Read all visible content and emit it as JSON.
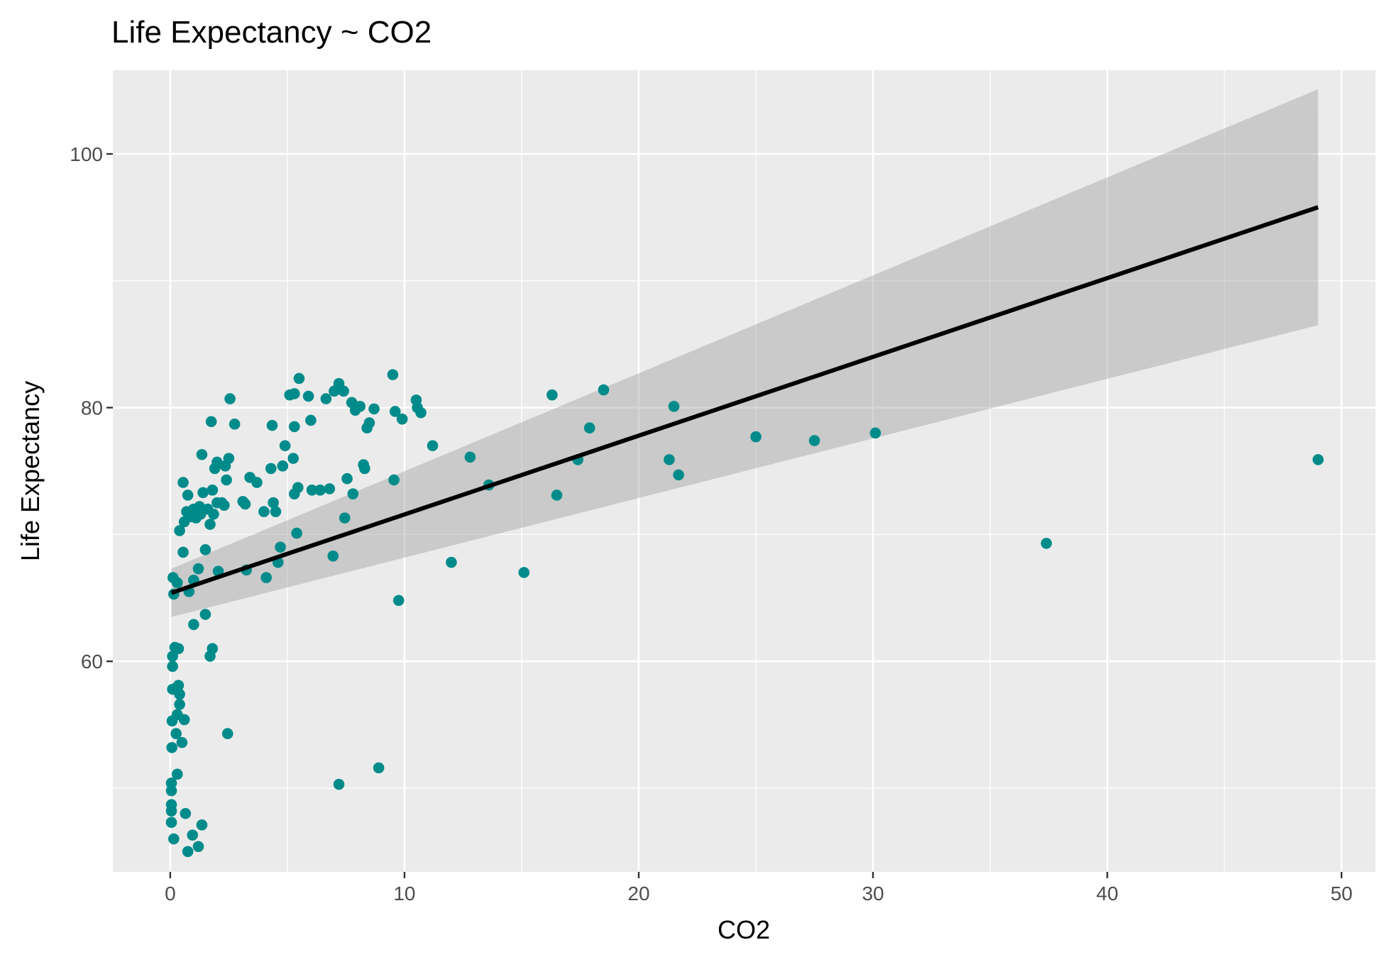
{
  "chart_data": {
    "type": "scatter",
    "title": "Life Expectancy ~ CO2",
    "xlabel": "CO2",
    "ylabel": "Life Expectancy",
    "xlim": [
      -2.45,
      51.45
    ],
    "ylim": [
      43.4,
      106.6
    ],
    "x_ticks": [
      0,
      10,
      20,
      30,
      40,
      50
    ],
    "x_tick_labels": [
      "0",
      "10",
      "20",
      "30",
      "40",
      "50"
    ],
    "y_ticks": [
      60,
      80,
      100
    ],
    "y_tick_labels": [
      "60",
      "80",
      "100"
    ],
    "grid": true,
    "panel_color": "#ebebeb",
    "grid_color": "#ffffff",
    "point_color": "#008b8b",
    "line_color": "#000000",
    "ribbon_color": "#999999",
    "series": [
      {
        "name": "observations",
        "points": [
          [
            0.05,
            47.3
          ],
          [
            0.05,
            48.2
          ],
          [
            0.05,
            48.7
          ],
          [
            0.05,
            49.8
          ],
          [
            0.05,
            50.4
          ],
          [
            0.07,
            53.2
          ],
          [
            0.08,
            55.3
          ],
          [
            0.1,
            57.8
          ],
          [
            0.1,
            59.6
          ],
          [
            0.1,
            60.4
          ],
          [
            0.12,
            66.6
          ],
          [
            0.15,
            46.0
          ],
          [
            0.15,
            65.3
          ],
          [
            0.2,
            61.1
          ],
          [
            0.25,
            54.3
          ],
          [
            0.3,
            51.1
          ],
          [
            0.3,
            55.8
          ],
          [
            0.3,
            66.2
          ],
          [
            0.35,
            58.1
          ],
          [
            0.35,
            61.0
          ],
          [
            0.4,
            57.4
          ],
          [
            0.4,
            56.6
          ],
          [
            0.4,
            70.3
          ],
          [
            0.5,
            53.6
          ],
          [
            0.55,
            68.6
          ],
          [
            0.55,
            74.1
          ],
          [
            0.6,
            55.4
          ],
          [
            0.6,
            71.0
          ],
          [
            0.65,
            48.0
          ],
          [
            0.7,
            71.8
          ],
          [
            0.75,
            45.0
          ],
          [
            0.75,
            73.1
          ],
          [
            0.8,
            65.5
          ],
          [
            0.9,
            71.4
          ],
          [
            0.95,
            46.3
          ],
          [
            1.0,
            66.4
          ],
          [
            1.0,
            62.9
          ],
          [
            1.0,
            72.0
          ],
          [
            1.1,
            71.3
          ],
          [
            1.2,
            45.4
          ],
          [
            1.2,
            67.3
          ],
          [
            1.25,
            72.2
          ],
          [
            1.3,
            71.6
          ],
          [
            1.35,
            47.1
          ],
          [
            1.35,
            76.3
          ],
          [
            1.4,
            73.3
          ],
          [
            1.5,
            68.8
          ],
          [
            1.5,
            63.7
          ],
          [
            1.6,
            72.0
          ],
          [
            1.7,
            70.8
          ],
          [
            1.7,
            60.4
          ],
          [
            1.75,
            78.9
          ],
          [
            1.8,
            61.0
          ],
          [
            1.8,
            73.5
          ],
          [
            1.85,
            71.6
          ],
          [
            1.9,
            75.2
          ],
          [
            2.0,
            72.5
          ],
          [
            2.0,
            75.7
          ],
          [
            2.05,
            67.1
          ],
          [
            2.2,
            72.5
          ],
          [
            2.3,
            72.3
          ],
          [
            2.35,
            75.4
          ],
          [
            2.4,
            74.3
          ],
          [
            2.45,
            54.3
          ],
          [
            2.5,
            76.0
          ],
          [
            2.55,
            80.7
          ],
          [
            2.75,
            78.7
          ],
          [
            3.1,
            72.6
          ],
          [
            3.2,
            72.4
          ],
          [
            3.25,
            67.2
          ],
          [
            3.4,
            74.5
          ],
          [
            3.7,
            74.1
          ],
          [
            4.0,
            71.8
          ],
          [
            4.1,
            66.6
          ],
          [
            4.3,
            75.2
          ],
          [
            4.35,
            78.6
          ],
          [
            4.4,
            72.5
          ],
          [
            4.5,
            71.8
          ],
          [
            4.6,
            67.8
          ],
          [
            4.7,
            69.0
          ],
          [
            4.8,
            75.4
          ],
          [
            4.9,
            77.0
          ],
          [
            5.1,
            81.0
          ],
          [
            5.25,
            76.0
          ],
          [
            5.3,
            81.1
          ],
          [
            5.3,
            78.5
          ],
          [
            5.3,
            73.2
          ],
          [
            5.4,
            70.1
          ],
          [
            5.45,
            73.7
          ],
          [
            5.5,
            82.3
          ],
          [
            5.9,
            80.9
          ],
          [
            6.0,
            79.0
          ],
          [
            6.05,
            73.5
          ],
          [
            6.4,
            73.5
          ],
          [
            6.65,
            80.7
          ],
          [
            6.8,
            73.6
          ],
          [
            6.95,
            68.3
          ],
          [
            7.0,
            81.3
          ],
          [
            7.2,
            81.9
          ],
          [
            7.2,
            50.3
          ],
          [
            7.4,
            81.3
          ],
          [
            7.45,
            71.3
          ],
          [
            7.55,
            74.4
          ],
          [
            7.75,
            80.4
          ],
          [
            7.8,
            73.2
          ],
          [
            7.9,
            79.8
          ],
          [
            8.1,
            80.1
          ],
          [
            8.25,
            75.5
          ],
          [
            8.3,
            75.2
          ],
          [
            8.4,
            78.4
          ],
          [
            8.5,
            78.8
          ],
          [
            8.7,
            79.9
          ],
          [
            8.9,
            51.6
          ],
          [
            9.5,
            82.6
          ],
          [
            9.55,
            74.3
          ],
          [
            9.6,
            79.7
          ],
          [
            9.75,
            64.8
          ],
          [
            9.9,
            79.1
          ],
          [
            10.5,
            80.6
          ],
          [
            10.55,
            80.0
          ],
          [
            10.7,
            79.6
          ],
          [
            11.2,
            77.0
          ],
          [
            12.0,
            67.8
          ],
          [
            12.8,
            76.1
          ],
          [
            13.6,
            73.9
          ],
          [
            15.1,
            67.0
          ],
          [
            16.3,
            81.0
          ],
          [
            16.5,
            73.1
          ],
          [
            17.4,
            75.9
          ],
          [
            17.9,
            78.4
          ],
          [
            18.5,
            81.4
          ],
          [
            21.3,
            75.9
          ],
          [
            21.5,
            80.1
          ],
          [
            21.7,
            74.7
          ],
          [
            25.0,
            77.7
          ],
          [
            27.5,
            77.4
          ],
          [
            30.1,
            78.0
          ],
          [
            37.4,
            69.3
          ],
          [
            49.0,
            75.9
          ]
        ]
      }
    ],
    "regression": {
      "x_range": [
        0.05,
        49.0
      ],
      "fit": [
        65.4,
        95.8
      ],
      "ribbon_lower": [
        63.5,
        86.5
      ],
      "ribbon_upper": [
        67.3,
        105.1
      ]
    }
  }
}
